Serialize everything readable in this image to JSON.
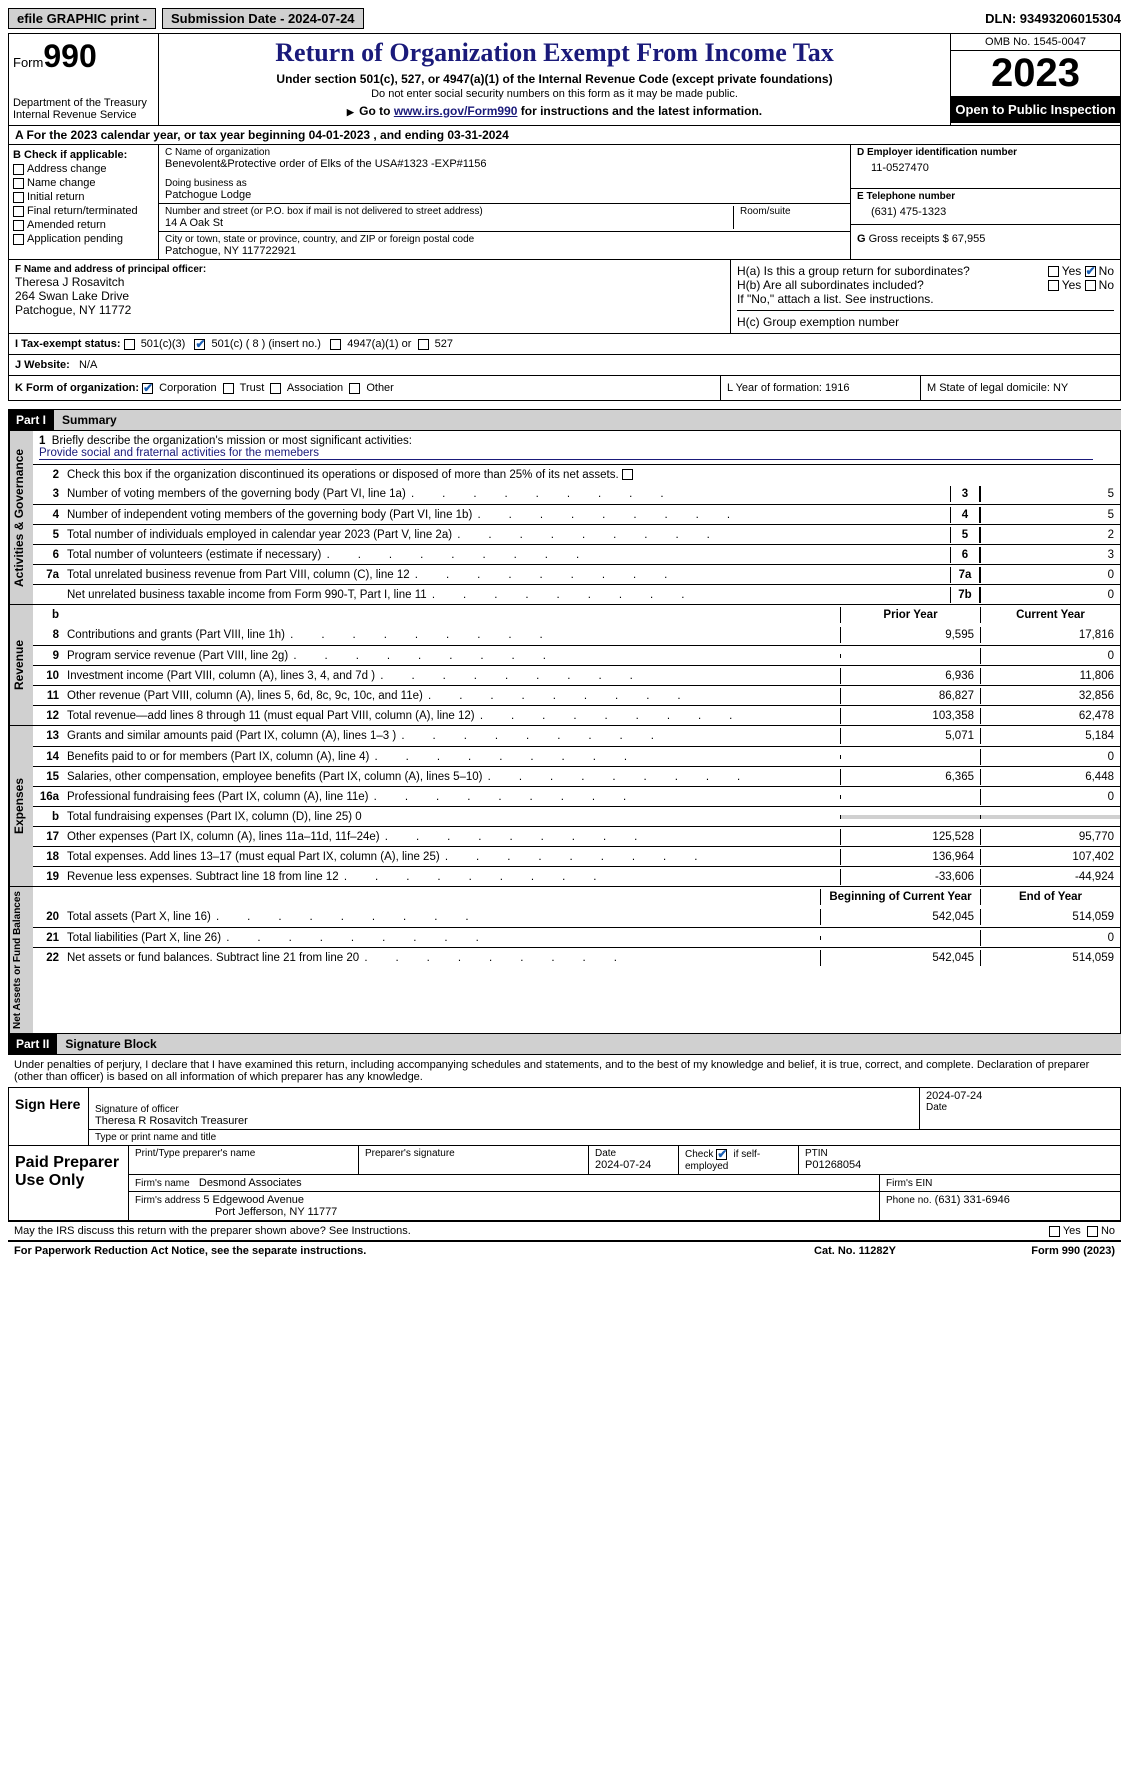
{
  "topbar": {
    "efile": "efile GRAPHIC print -",
    "submission_label": "Submission Date - 2024-07-24",
    "dln_label": "DLN: 93493206015304"
  },
  "header": {
    "form_label": "Form",
    "form_num": "990",
    "dept": "Department of the Treasury Internal Revenue Service",
    "title": "Return of Organization Exempt From Income Tax",
    "sub1": "Under section 501(c), 527, or 4947(a)(1) of the Internal Revenue Code (except private foundations)",
    "sub2": "Do not enter social security numbers on this form as it may be made public.",
    "sub3_pre": "Go to ",
    "sub3_link": "www.irs.gov/Form990",
    "sub3_post": " for instructions and the latest information.",
    "omb": "OMB No. 1545-0047",
    "year": "2023",
    "open": "Open to Public Inspection"
  },
  "a": "A For the 2023 calendar year, or tax year beginning 04-01-2023   , and ending 03-31-2024",
  "b": {
    "label": "B Check if applicable:",
    "opts": [
      "Address change",
      "Name change",
      "Initial return",
      "Final return/terminated",
      "Amended return",
      "Application pending"
    ]
  },
  "c": {
    "name_lab": "C Name of organization",
    "name": "Benevolent&Protective order of Elks of the USA#1323 -EXP#1156",
    "dba_lab": "Doing business as",
    "dba": "Patchogue Lodge",
    "street_lab": "Number and street (or P.O. box if mail is not delivered to street address)",
    "street": "14 A Oak St",
    "room_lab": "Room/suite",
    "city_lab": "City or town, state or province, country, and ZIP or foreign postal code",
    "city": "Patchogue, NY  117722921"
  },
  "d": {
    "lab": "D Employer identification number",
    "val": "11-0527470"
  },
  "e": {
    "lab": "E Telephone number",
    "val": "(631) 475-1323"
  },
  "g": {
    "lab": "G",
    "text": "Gross receipts $ 67,955"
  },
  "f": {
    "lab": "F  Name and address of principal officer:",
    "name": "Theresa J Rosavitch",
    "addr1": "264 Swan Lake Drive",
    "addr2": "Patchogue, NY  11772"
  },
  "h": {
    "a": "H(a)  Is this a group return for subordinates?",
    "b": "H(b)  Are all subordinates included?",
    "note": "If \"No,\" attach a list. See instructions.",
    "c": "H(c)  Group exemption number",
    "yes": "Yes",
    "no": "No"
  },
  "i": {
    "lab": "I   Tax-exempt status:",
    "o1": "501(c)(3)",
    "o2": "501(c) ( 8 ) (insert no.)",
    "o3": "4947(a)(1) or",
    "o4": "527"
  },
  "j": {
    "lab": "J   Website:",
    "val": "N/A"
  },
  "k": {
    "lab": "K Form of organization:",
    "o1": "Corporation",
    "o2": "Trust",
    "o3": "Association",
    "o4": "Other"
  },
  "l": {
    "lab": "L Year of formation: 1916"
  },
  "m": {
    "lab": "M State of legal domicile: NY"
  },
  "part1": {
    "label": "Part I",
    "title": "Summary"
  },
  "mission": {
    "n": "1",
    "t": "Briefly describe the organization's mission or most significant activities:",
    "val": "Provide social and fraternal activities for the memebers"
  },
  "gov": {
    "label": "Activities & Governance",
    "r2": {
      "n": "2",
      "t": "Check this box           if the organization discontinued its operations or disposed of more than 25% of its net assets."
    },
    "rows": [
      {
        "n": "3",
        "t": "Number of voting members of the governing body (Part VI, line 1a)",
        "bn": "3",
        "v": "5"
      },
      {
        "n": "4",
        "t": "Number of independent voting members of the governing body (Part VI, line 1b)",
        "bn": "4",
        "v": "5"
      },
      {
        "n": "5",
        "t": "Total number of individuals employed in calendar year 2023 (Part V, line 2a)",
        "bn": "5",
        "v": "2"
      },
      {
        "n": "6",
        "t": "Total number of volunteers (estimate if necessary)",
        "bn": "6",
        "v": "3"
      },
      {
        "n": "7a",
        "t": "Total unrelated business revenue from Part VIII, column (C), line 12",
        "bn": "7a",
        "v": "0"
      },
      {
        "n": "",
        "t": "Net unrelated business taxable income from Form 990-T, Part I, line 11",
        "bn": "7b",
        "v": "0"
      }
    ]
  },
  "rev": {
    "label": "Revenue",
    "hdr_b": "b",
    "hdr_prior": "Prior Year",
    "hdr_curr": "Current Year",
    "rows": [
      {
        "n": "8",
        "t": "Contributions and grants (Part VIII, line 1h)",
        "p": "9,595",
        "c": "17,816"
      },
      {
        "n": "9",
        "t": "Program service revenue (Part VIII, line 2g)",
        "p": "",
        "c": "0"
      },
      {
        "n": "10",
        "t": "Investment income (Part VIII, column (A), lines 3, 4, and 7d )",
        "p": "6,936",
        "c": "11,806"
      },
      {
        "n": "11",
        "t": "Other revenue (Part VIII, column (A), lines 5, 6d, 8c, 9c, 10c, and 11e)",
        "p": "86,827",
        "c": "32,856"
      },
      {
        "n": "12",
        "t": "Total revenue—add lines 8 through 11 (must equal Part VIII, column (A), line 12)",
        "p": "103,358",
        "c": "62,478"
      }
    ]
  },
  "exp": {
    "label": "Expenses",
    "rows": [
      {
        "n": "13",
        "t": "Grants and similar amounts paid (Part IX, column (A), lines 1–3 )",
        "p": "5,071",
        "c": "5,184"
      },
      {
        "n": "14",
        "t": "Benefits paid to or for members (Part IX, column (A), line 4)",
        "p": "",
        "c": "0"
      },
      {
        "n": "15",
        "t": "Salaries, other compensation, employee benefits (Part IX, column (A), lines 5–10)",
        "p": "6,365",
        "c": "6,448"
      },
      {
        "n": "16a",
        "t": "Professional fundraising fees (Part IX, column (A), line 11e)",
        "p": "",
        "c": "0"
      },
      {
        "n": "b",
        "t": "Total fundraising expenses (Part IX, column (D), line 25) 0",
        "p": "gray",
        "c": "gray"
      },
      {
        "n": "17",
        "t": "Other expenses (Part IX, column (A), lines 11a–11d, 11f–24e)",
        "p": "125,528",
        "c": "95,770"
      },
      {
        "n": "18",
        "t": "Total expenses. Add lines 13–17 (must equal Part IX, column (A), line 25)",
        "p": "136,964",
        "c": "107,402"
      },
      {
        "n": "19",
        "t": "Revenue less expenses. Subtract line 18 from line 12",
        "p": "-33,606",
        "c": "-44,924"
      }
    ]
  },
  "net": {
    "label": "Net Assets or Fund Balances",
    "hdr_beg": "Beginning of Current Year",
    "hdr_end": "End of Year",
    "rows": [
      {
        "n": "20",
        "t": "Total assets (Part X, line 16)",
        "p": "542,045",
        "c": "514,059"
      },
      {
        "n": "21",
        "t": "Total liabilities (Part X, line 26)",
        "p": "",
        "c": "0"
      },
      {
        "n": "22",
        "t": "Net assets or fund balances. Subtract line 21 from line 20",
        "p": "542,045",
        "c": "514,059"
      }
    ]
  },
  "part2": {
    "label": "Part II",
    "title": "Signature Block"
  },
  "decl": "Under penalties of perjury, I declare that I have examined this return, including accompanying schedules and statements, and to the best of my knowledge and belief, it is true, correct, and complete. Declaration of preparer (other than officer) is based on all information of which preparer has any knowledge.",
  "sign": {
    "lab": "Sign Here",
    "sig_lab": "Signature of officer",
    "officer": "Theresa R Rosavitch  Treasurer",
    "type_lab": "Type or print name and title",
    "date_lab": "Date",
    "date": "2024-07-24"
  },
  "prep": {
    "lab": "Paid Preparer Use Only",
    "h1": "Print/Type preparer's name",
    "h2": "Preparer's signature",
    "h3": "Date",
    "date": "2024-07-24",
    "h4_pre": "Check",
    "h4_post": "if self-employed",
    "h5": "PTIN",
    "ptin": "P01268054",
    "firm_lab": "Firm's name",
    "firm": "Desmond Associates",
    "ein_lab": "Firm's EIN",
    "addr_lab": "Firm's address",
    "addr1": "5 Edgewood Avenue",
    "addr2": "Port Jefferson, NY  11777",
    "phone_lab": "Phone no.",
    "phone": "(631) 331-6946"
  },
  "discuss": {
    "t": "May the IRS discuss this return with the preparer shown above? See Instructions.",
    "yes": "Yes",
    "no": "No"
  },
  "footer": {
    "l": "For Paperwork Reduction Act Notice, see the separate instructions.",
    "m": "Cat. No. 11282Y",
    "r": "Form 990 (2023)"
  }
}
